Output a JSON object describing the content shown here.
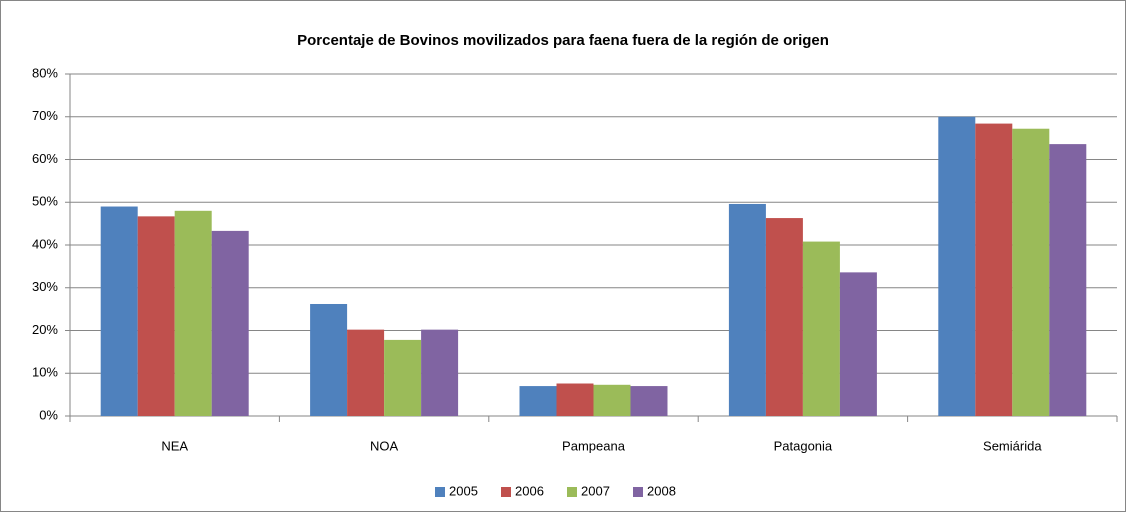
{
  "chart_data": {
    "type": "bar",
    "title": "Porcentaje de Bovinos movilizados para faena fuera de la región de origen",
    "categories": [
      "NEA",
      "NOA",
      "Pampeana",
      "Patagonia",
      "Semiárida"
    ],
    "series": [
      {
        "name": "2005",
        "color": "#4f81bd",
        "values": [
          49,
          26.2,
          7,
          49.6,
          70
        ]
      },
      {
        "name": "2006",
        "color": "#c0504d",
        "values": [
          46.7,
          20.2,
          7.6,
          46.3,
          68.4
        ]
      },
      {
        "name": "2007",
        "color": "#9bbb59",
        "values": [
          48,
          17.8,
          7.3,
          40.8,
          67.2
        ]
      },
      {
        "name": "2008",
        "color": "#8064a2",
        "values": [
          43.3,
          20.2,
          7,
          33.6,
          63.6
        ]
      }
    ],
    "ylim": [
      0,
      80
    ],
    "yticks": [
      {
        "value": 0,
        "label": "0%"
      },
      {
        "value": 10,
        "label": "10%"
      },
      {
        "value": 20,
        "label": "20%"
      },
      {
        "value": 30,
        "label": "30%"
      },
      {
        "value": 40,
        "label": "40%"
      },
      {
        "value": 50,
        "label": "50%"
      },
      {
        "value": 60,
        "label": "60%"
      },
      {
        "value": 70,
        "label": "70%"
      },
      {
        "value": 80,
        "label": "80%"
      }
    ],
    "grid": true,
    "legend": "bottom"
  }
}
